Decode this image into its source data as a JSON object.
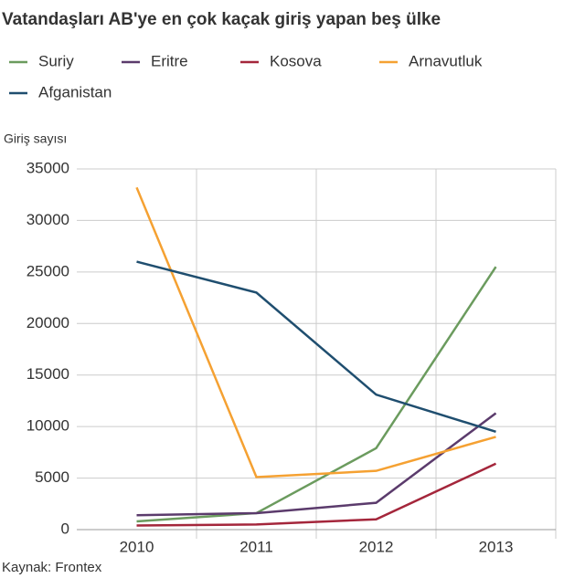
{
  "chart_data": {
    "type": "line",
    "title": "Vatandaşları AB'ye en çok kaçak giriş yapan beş ülke",
    "y_axis_label": "Giriş sayısı",
    "source": "Kaynak: Frontex",
    "categories": [
      "2010",
      "2011",
      "2012",
      "2013"
    ],
    "series": [
      {
        "name": "Suriy",
        "color": "#6b9b5e",
        "values": [
          800,
          1600,
          7900,
          25500
        ]
      },
      {
        "name": "Eritre",
        "color": "#5b3b6c",
        "values": [
          1400,
          1600,
          2600,
          11300
        ]
      },
      {
        "name": "Kosova",
        "color": "#a4263b",
        "values": [
          400,
          500,
          1000,
          6400
        ]
      },
      {
        "name": "Arnavutluk",
        "color": "#f5a132",
        "values": [
          33200,
          5100,
          5700,
          9000
        ]
      },
      {
        "name": "Afganistan",
        "color": "#1f4e6f",
        "values": [
          26000,
          23000,
          13100,
          9500
        ]
      }
    ],
    "ylim": [
      0,
      35000
    ],
    "yticks": [
      0,
      5000,
      10000,
      15000,
      20000,
      25000,
      30000,
      35000
    ],
    "grid": true
  }
}
